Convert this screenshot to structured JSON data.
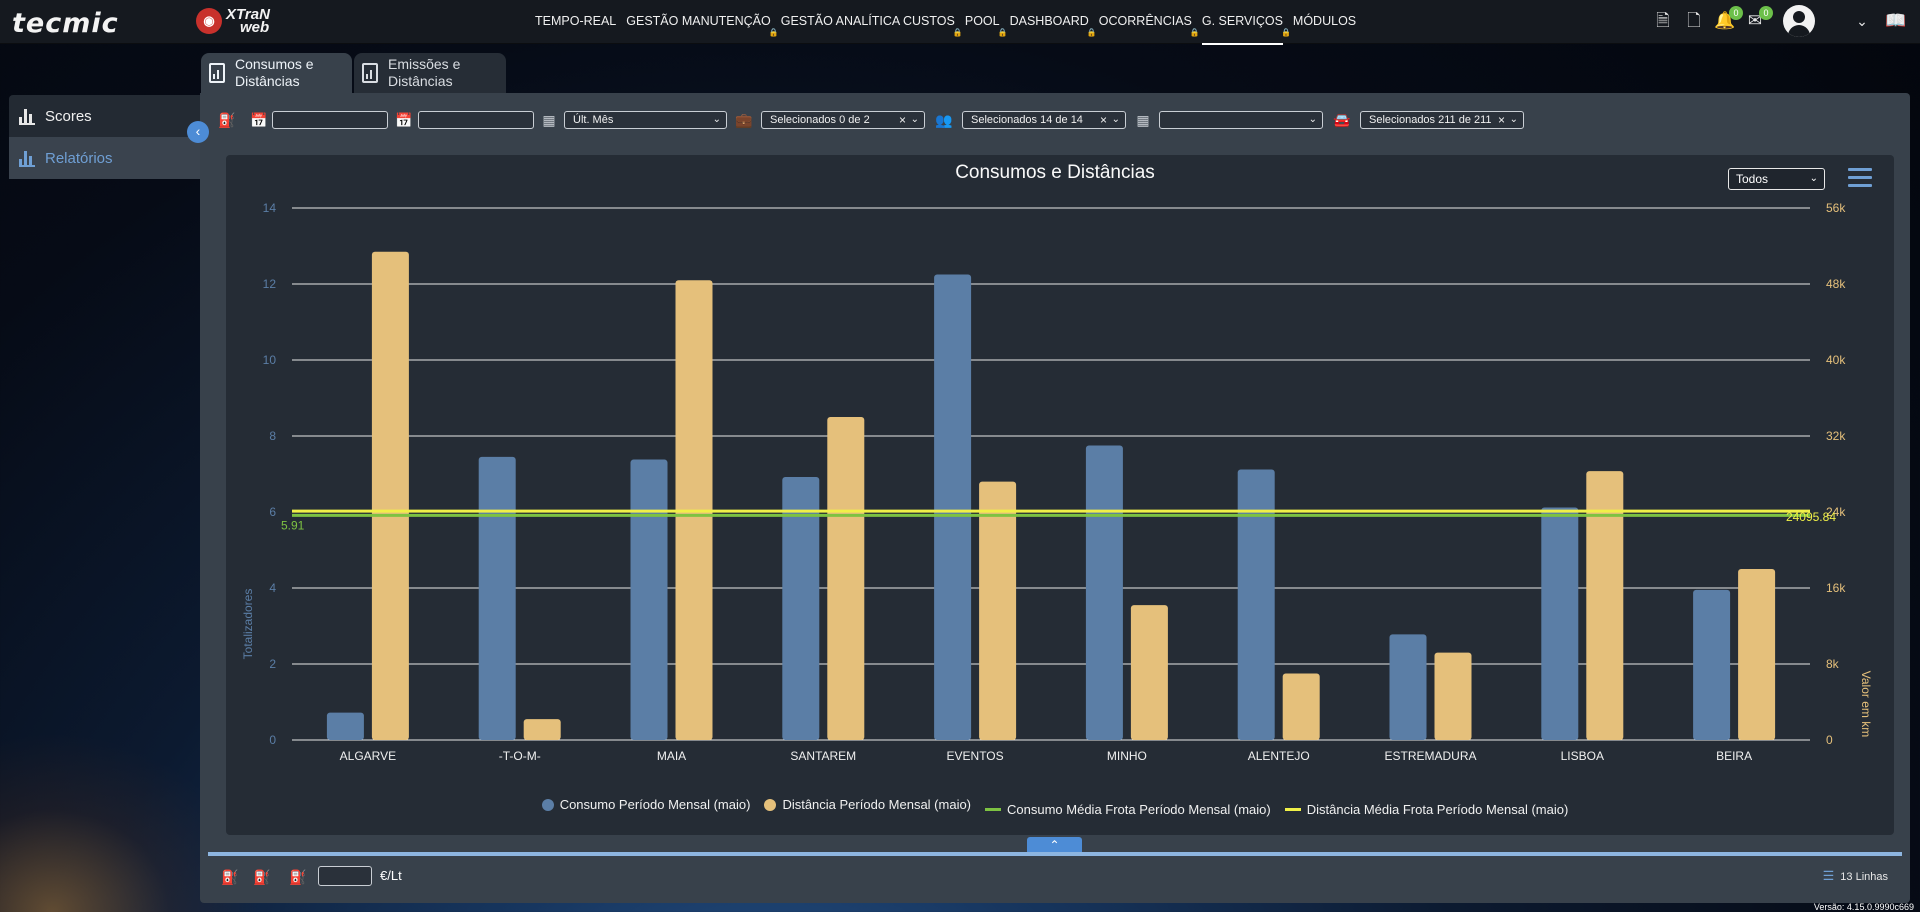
{
  "brand": {
    "logo1": "tecmic",
    "logo2_line1": "XTraN",
    "logo2_line2": "web"
  },
  "nav": {
    "items": [
      {
        "label": "TEMPO-REAL",
        "locked": false
      },
      {
        "label": "GESTÃO MANUTENÇÃO",
        "locked": true
      },
      {
        "label": "GESTÃO ANALÍTICA CUSTOS",
        "locked": true
      },
      {
        "label": "POOL",
        "locked": true
      },
      {
        "label": "DASHBOARD",
        "locked": true
      },
      {
        "label": "OCORRÊNCIAS",
        "locked": true
      },
      {
        "label": "G. SERVIÇOS",
        "locked": true,
        "active": true
      },
      {
        "label": "MÓDULOS",
        "locked": false
      }
    ],
    "notifications_count": "0",
    "messages_count": "0"
  },
  "sidebar": {
    "items": [
      {
        "label": "Scores"
      },
      {
        "label": "Relatórios",
        "active": true
      }
    ]
  },
  "tabs": [
    {
      "line1": "Consumos e",
      "line2": "Distâncias",
      "active": true
    },
    {
      "line1": "Emissões e",
      "line2": "Distâncias",
      "active": false
    }
  ],
  "filters": {
    "date_from": "",
    "date_to": "",
    "period": "Últ. Mês",
    "group1": "Selecionados 0 de 2",
    "group2": "Selecionados 14 de 14",
    "group3": "",
    "vehicles": "Selecionados 211 de 211"
  },
  "chart_filter": "Todos",
  "chart_data": {
    "type": "bar",
    "title": "Consumos e Distâncias",
    "categories": [
      "ALGARVE",
      "-T-O-M-",
      "MAIA",
      "SANTAREM",
      "EVENTOS",
      "MINHO",
      "ALENTEJO",
      "ESTREMADURA",
      "LISBOA",
      "BEIRA"
    ],
    "series": [
      {
        "name": "Consumo Período Mensal (maio)",
        "axis": "left",
        "color": "#5b7ea6",
        "values": [
          0.72,
          7.45,
          7.38,
          6.92,
          12.25,
          7.75,
          7.12,
          2.78,
          6.12,
          3.95
        ]
      },
      {
        "name": "Distância Período Mensal (maio)",
        "axis": "right",
        "color": "#e5c07b",
        "values": [
          51400,
          2200,
          48400,
          34000,
          27200,
          14200,
          7000,
          9200,
          28300,
          18000
        ]
      }
    ],
    "lines": [
      {
        "name": "Consumo Média Frota Período Mensal (maio)",
        "axis": "left",
        "color": "#7dc242",
        "value": 5.91,
        "label": "5.91"
      },
      {
        "name": "Distância Média Frota Período Mensal (maio)",
        "axis": "right",
        "color": "#f0f048",
        "value": 24095.84,
        "label": "24095.84"
      }
    ],
    "ylabel": "Totalizadores",
    "y2label": "Valor em km",
    "ylim": [
      0,
      14
    ],
    "y2lim": [
      0,
      56000
    ],
    "yticks": [
      "0",
      "2",
      "4",
      "6",
      "8",
      "10",
      "12",
      "14"
    ],
    "y2ticks": [
      "0",
      "8k",
      "16k",
      "24k",
      "32k",
      "40k",
      "48k",
      "56k"
    ],
    "grid": true,
    "legend_position": "bottom"
  },
  "bottom": {
    "price_value": "",
    "price_unit": "€/Lt",
    "lines_label": "13 Linhas"
  },
  "version": "Versão: 4.15.0.9990c669"
}
